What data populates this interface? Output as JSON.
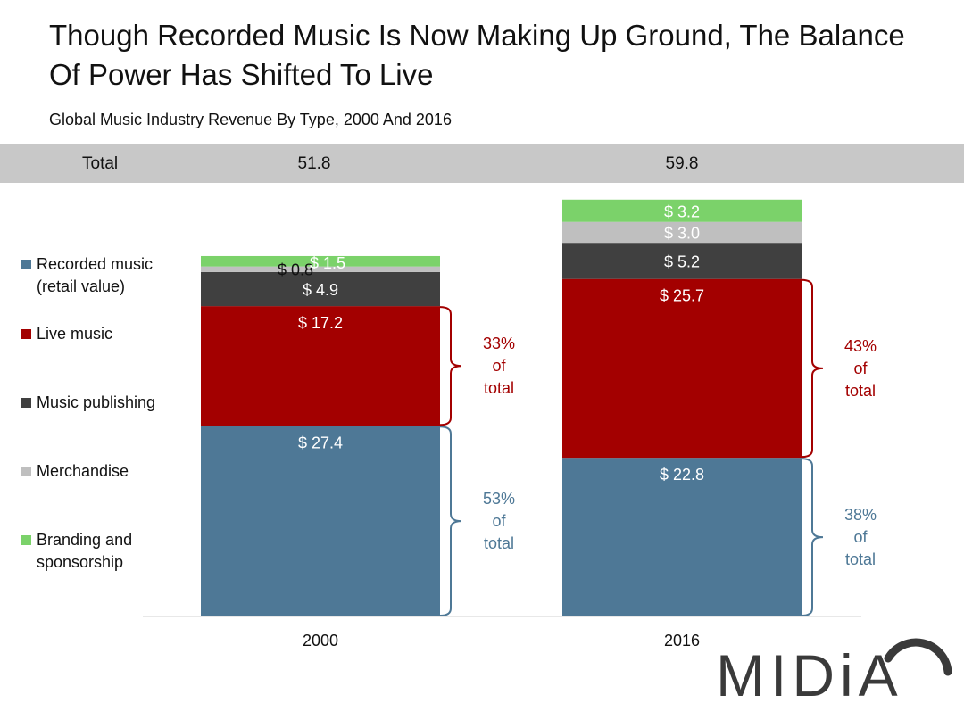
{
  "title": "Though Recorded Music Is Now Making Up Ground, The Balance Of Power Has Shifted To Live",
  "subtitle": "Global Music Industry Revenue By Type, 2000 And 2016",
  "totals": {
    "label": "Total",
    "values": [
      "51.8",
      "59.8"
    ]
  },
  "legend": [
    {
      "label": "Recorded music (retail value)",
      "color": "#4e7896"
    },
    {
      "label": "Live music",
      "color": "#a30000"
    },
    {
      "label": "Music publishing",
      "color": "#404040"
    },
    {
      "label": "Merchandise",
      "color": "#bfbfbf"
    },
    {
      "label": "Branding and sponsorship",
      "color": "#7bd26a"
    }
  ],
  "chart_data": {
    "type": "bar",
    "stacked": true,
    "categories": [
      "2000",
      "2016"
    ],
    "series": [
      {
        "name": "Recorded music (retail value)",
        "color": "#4e7896",
        "values": [
          27.4,
          22.8
        ],
        "labels": [
          "$ 27.4",
          "$ 22.8"
        ]
      },
      {
        "name": "Live music",
        "color": "#a30000",
        "values": [
          17.2,
          25.7
        ],
        "labels": [
          "$ 17.2",
          "$ 25.7"
        ]
      },
      {
        "name": "Music publishing",
        "color": "#404040",
        "values": [
          4.9,
          5.2
        ],
        "labels": [
          "$ 4.9",
          "$ 5.2"
        ]
      },
      {
        "name": "Merchandise",
        "color": "#bfbfbf",
        "values": [
          0.8,
          3.0
        ],
        "labels": [
          "$ 0.8",
          "$ 3.0"
        ]
      },
      {
        "name": "Branding and sponsorship",
        "color": "#7bd26a",
        "values": [
          1.5,
          3.2
        ],
        "labels": [
          "$ 1.5",
          "$ 3.2"
        ]
      }
    ],
    "annotations": [
      {
        "category": "2000",
        "series": "Live music",
        "text": [
          "33%",
          "of",
          "total"
        ],
        "color": "#a30000"
      },
      {
        "category": "2000",
        "series": "Recorded music (retail value)",
        "text": [
          "53%",
          "of",
          "total"
        ],
        "color": "#4e7896"
      },
      {
        "category": "2016",
        "series": "Live music",
        "text": [
          "43%",
          "of",
          "total"
        ],
        "color": "#a30000"
      },
      {
        "category": "2016",
        "series": "Recorded music (retail value)",
        "text": [
          "38%",
          "of",
          "total"
        ],
        "color": "#4e7896"
      }
    ],
    "legend_position": "left"
  },
  "logo": {
    "text": "MIDiA"
  }
}
